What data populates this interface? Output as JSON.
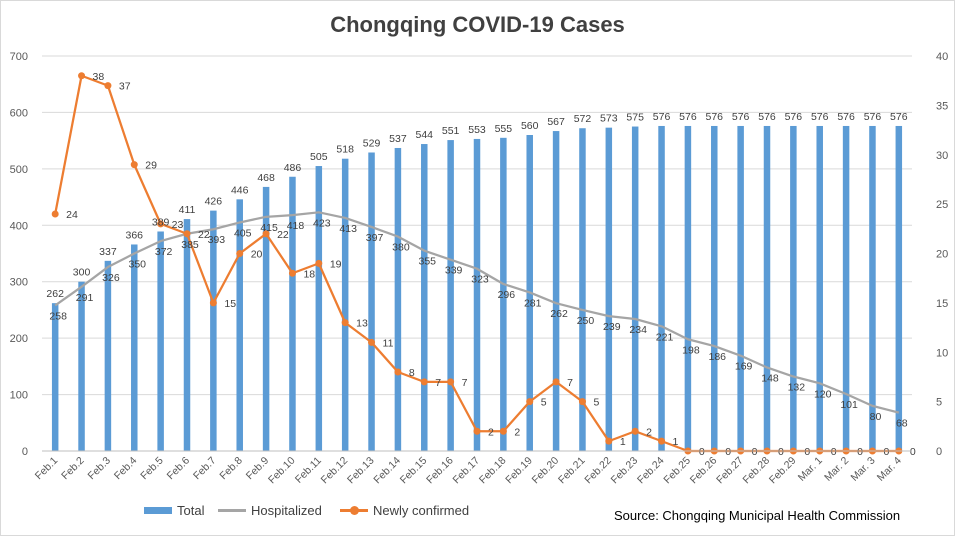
{
  "chart_data": {
    "type": "bar",
    "title": "Chongqing COVID-19 Cases",
    "source": "Source: Chongqing Municipal Health Commission",
    "categories": [
      "Feb.1",
      "Feb.2",
      "Feb.3",
      "Feb.4",
      "Feb.5",
      "Feb.6",
      "Feb.7",
      "Feb.8",
      "Feb.9",
      "Feb.10",
      "Feb.11",
      "Feb.12",
      "Feb.13",
      "Feb.14",
      "Feb.15",
      "Feb.16",
      "Feb.17",
      "Feb.18",
      "Feb.19",
      "Feb.20",
      "Feb.21",
      "Feb.22",
      "Feb.23",
      "Feb.24",
      "Feb.25",
      "Feb.26",
      "Feb.27",
      "Feb.28",
      "Feb.29",
      "Mar. 1",
      "Mar. 2",
      "Mar. 3",
      "Mar. 4"
    ],
    "left_axis": {
      "ylim": [
        0,
        700
      ],
      "ticks": [
        0,
        100,
        200,
        300,
        400,
        500,
        600,
        700
      ]
    },
    "right_axis": {
      "ylim": [
        0,
        40
      ],
      "ticks": [
        0,
        5,
        10,
        15,
        20,
        25,
        30,
        35,
        40
      ]
    },
    "series": [
      {
        "name": "Total",
        "kind": "bar",
        "axis": "left",
        "color": "#5b9bd5",
        "values": [
          262,
          300,
          337,
          366,
          389,
          411,
          426,
          446,
          468,
          486,
          505,
          518,
          529,
          537,
          544,
          551,
          553,
          555,
          560,
          567,
          572,
          573,
          575,
          576,
          576,
          576,
          576,
          576,
          576,
          576,
          576,
          576,
          576
        ]
      },
      {
        "name": "Hospitalized",
        "kind": "line",
        "axis": "left",
        "color": "#a5a5a5",
        "values": [
          258,
          291,
          326,
          350,
          372,
          385,
          393,
          405,
          415,
          418,
          423,
          413,
          397,
          380,
          355,
          339,
          323,
          296,
          281,
          262,
          250,
          239,
          234,
          221,
          198,
          186,
          169,
          148,
          132,
          120,
          101,
          80,
          68
        ]
      },
      {
        "name": "Newly confirmed",
        "kind": "line-marker",
        "axis": "right",
        "color": "#ed7d31",
        "values": [
          24,
          38,
          37,
          29,
          23,
          22,
          15,
          20,
          22,
          18,
          19,
          13,
          11,
          8,
          7,
          7,
          2,
          2,
          5,
          7,
          5,
          1,
          2,
          1,
          0,
          0,
          0,
          0,
          0,
          0,
          0,
          0,
          0
        ]
      }
    ],
    "grid": true,
    "legend_position": "bottom"
  }
}
